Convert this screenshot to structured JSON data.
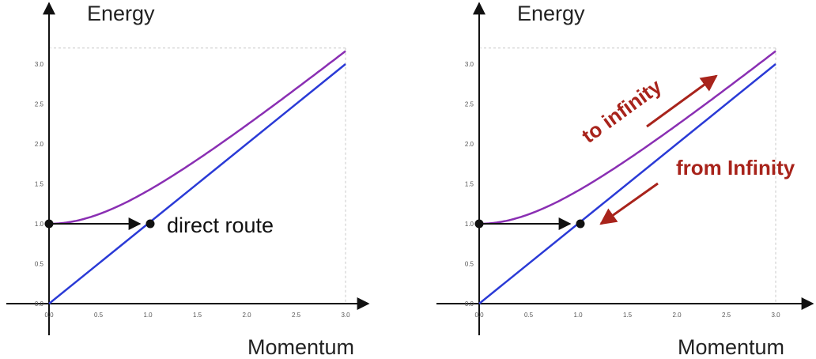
{
  "colors": {
    "energy_curve": "#8a2fb3",
    "linear_line": "#2a3ad6",
    "axis": "#111111",
    "grid": "#c8c8c8",
    "annotation_red": "#a8231b"
  },
  "chart_data": [
    {
      "type": "line",
      "panel": "left",
      "ylabel": "Energy",
      "xlabel": "Momentum",
      "xlim": [
        0,
        3.0
      ],
      "ylim": [
        0,
        3.2
      ],
      "grid": false,
      "x_ticks": [
        "0.0",
        "0.5",
        "1.0",
        "1.5",
        "2.0",
        "2.5",
        "3.0"
      ],
      "y_ticks": [
        "0.0",
        "0.5",
        "1.0",
        "1.5",
        "2.0",
        "2.5",
        "3.0"
      ],
      "series": [
        {
          "key": "curve",
          "function": "sqrt(1 + x^2)",
          "x": [
            0,
            0.25,
            0.5,
            0.75,
            1.0,
            1.25,
            1.5,
            1.75,
            2.0,
            2.25,
            2.5,
            2.75,
            3.0
          ],
          "values": [
            1.0,
            1.031,
            1.118,
            1.25,
            1.414,
            1.601,
            1.803,
            2.016,
            2.236,
            2.462,
            2.693,
            2.926,
            3.162
          ]
        },
        {
          "key": "line",
          "function": "x",
          "x": [
            0,
            3.0
          ],
          "values": [
            0,
            3.0
          ]
        }
      ],
      "points": [
        {
          "x": 0,
          "y": 1.0
        },
        {
          "x": 1.0,
          "y": 1.0
        }
      ],
      "annotations": [
        {
          "key": "direct",
          "text": "direct route"
        }
      ]
    },
    {
      "type": "line",
      "panel": "right",
      "ylabel": "Energy",
      "xlabel": "Momentum",
      "xlim": [
        0,
        3.0
      ],
      "ylim": [
        0,
        3.2
      ],
      "grid": false,
      "x_ticks": [
        "0.0",
        "0.5",
        "1.0",
        "1.5",
        "2.0",
        "2.5",
        "3.0"
      ],
      "y_ticks": [
        "0.0",
        "0.5",
        "1.0",
        "1.5",
        "2.0",
        "2.5",
        "3.0"
      ],
      "series": [
        {
          "key": "curve",
          "function": "sqrt(1 + x^2)",
          "x": [
            0,
            0.25,
            0.5,
            0.75,
            1.0,
            1.25,
            1.5,
            1.75,
            2.0,
            2.25,
            2.5,
            2.75,
            3.0
          ],
          "values": [
            1.0,
            1.031,
            1.118,
            1.25,
            1.414,
            1.601,
            1.803,
            2.016,
            2.236,
            2.462,
            2.693,
            2.926,
            3.162
          ]
        },
        {
          "key": "line",
          "function": "x",
          "x": [
            0,
            3.0
          ],
          "values": [
            0,
            3.0
          ]
        }
      ],
      "points": [
        {
          "x": 0,
          "y": 1.0
        },
        {
          "x": 1.0,
          "y": 1.0
        }
      ],
      "annotations": [
        {
          "key": "to",
          "text": "to infinity"
        },
        {
          "key": "from",
          "text": "from Infinity"
        }
      ]
    }
  ]
}
